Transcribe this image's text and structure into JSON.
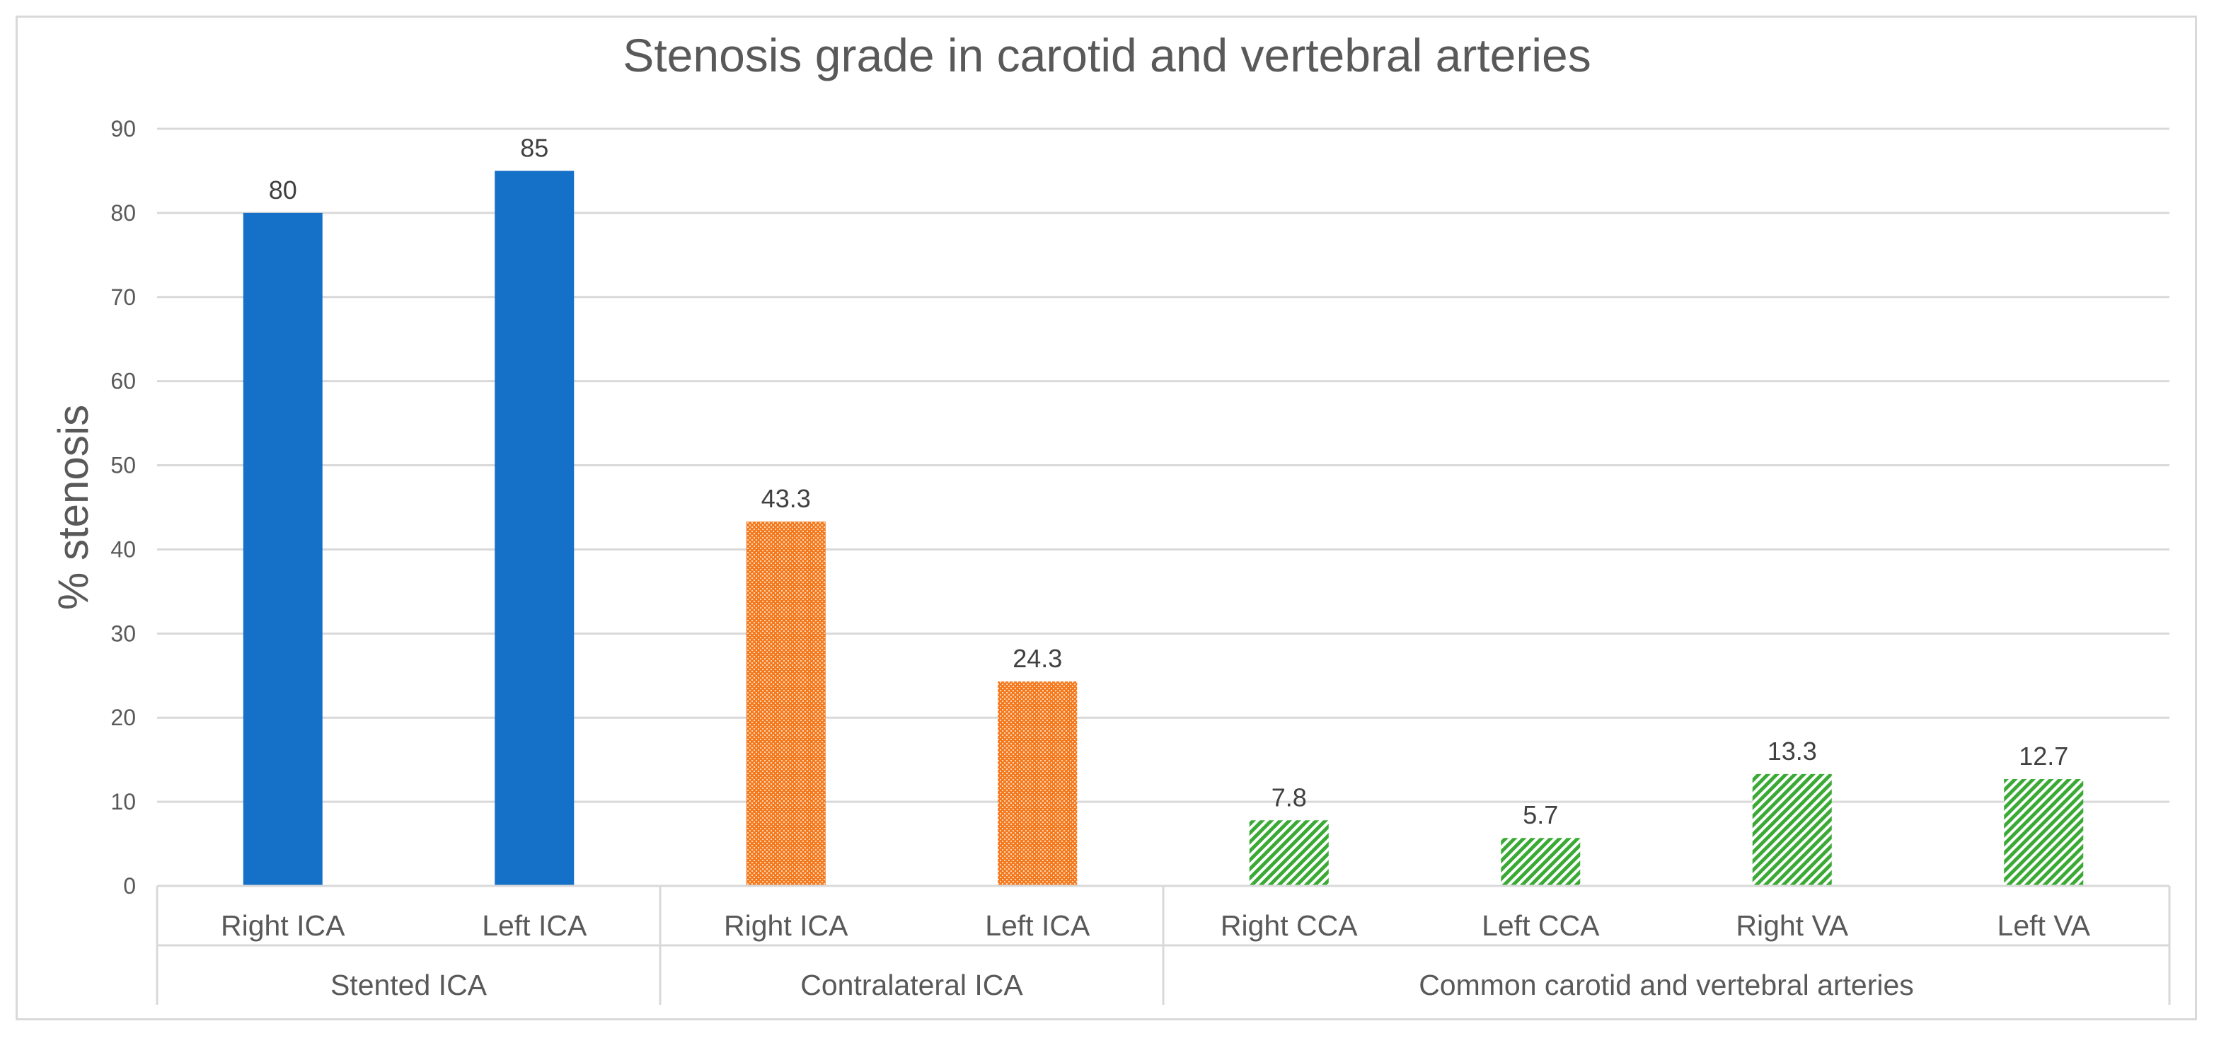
{
  "chart_data": {
    "type": "bar",
    "title": "Stenosis grade in carotid and vertebral arteries",
    "ylabel": "% stenosis",
    "xlabel": "",
    "ylim": [
      0,
      90
    ],
    "yticks": [
      0,
      10,
      20,
      30,
      40,
      50,
      60,
      70,
      80,
      90
    ],
    "grid": true,
    "legend": "none",
    "categories": [
      "Right ICA",
      "Left ICA",
      "Right ICA",
      "Left ICA",
      "Right CCA",
      "Left CCA",
      "Right VA",
      "Left VA"
    ],
    "values": [
      80,
      85,
      43.3,
      24.3,
      7.8,
      5.7,
      13.3,
      12.7
    ],
    "data_labels": [
      "80",
      "85",
      "43.3",
      "24.3",
      "7.8",
      "5.7",
      "13.3",
      "12.7"
    ],
    "groups": [
      {
        "label": "Stented ICA",
        "categories": [
          "Right ICA",
          "Left ICA"
        ],
        "color": "#1570c8",
        "pattern": "solid"
      },
      {
        "label": "Contralateral ICA",
        "categories": [
          "Right ICA",
          "Left ICA"
        ],
        "color": "#f47a20",
        "pattern": "dotted"
      },
      {
        "label": "Common carotid and vertebral arteries",
        "categories": [
          "Right CCA",
          "Left CCA",
          "Right VA",
          "Left VA"
        ],
        "color": "#3aaa35",
        "pattern": "diagonal-hatch"
      }
    ]
  }
}
